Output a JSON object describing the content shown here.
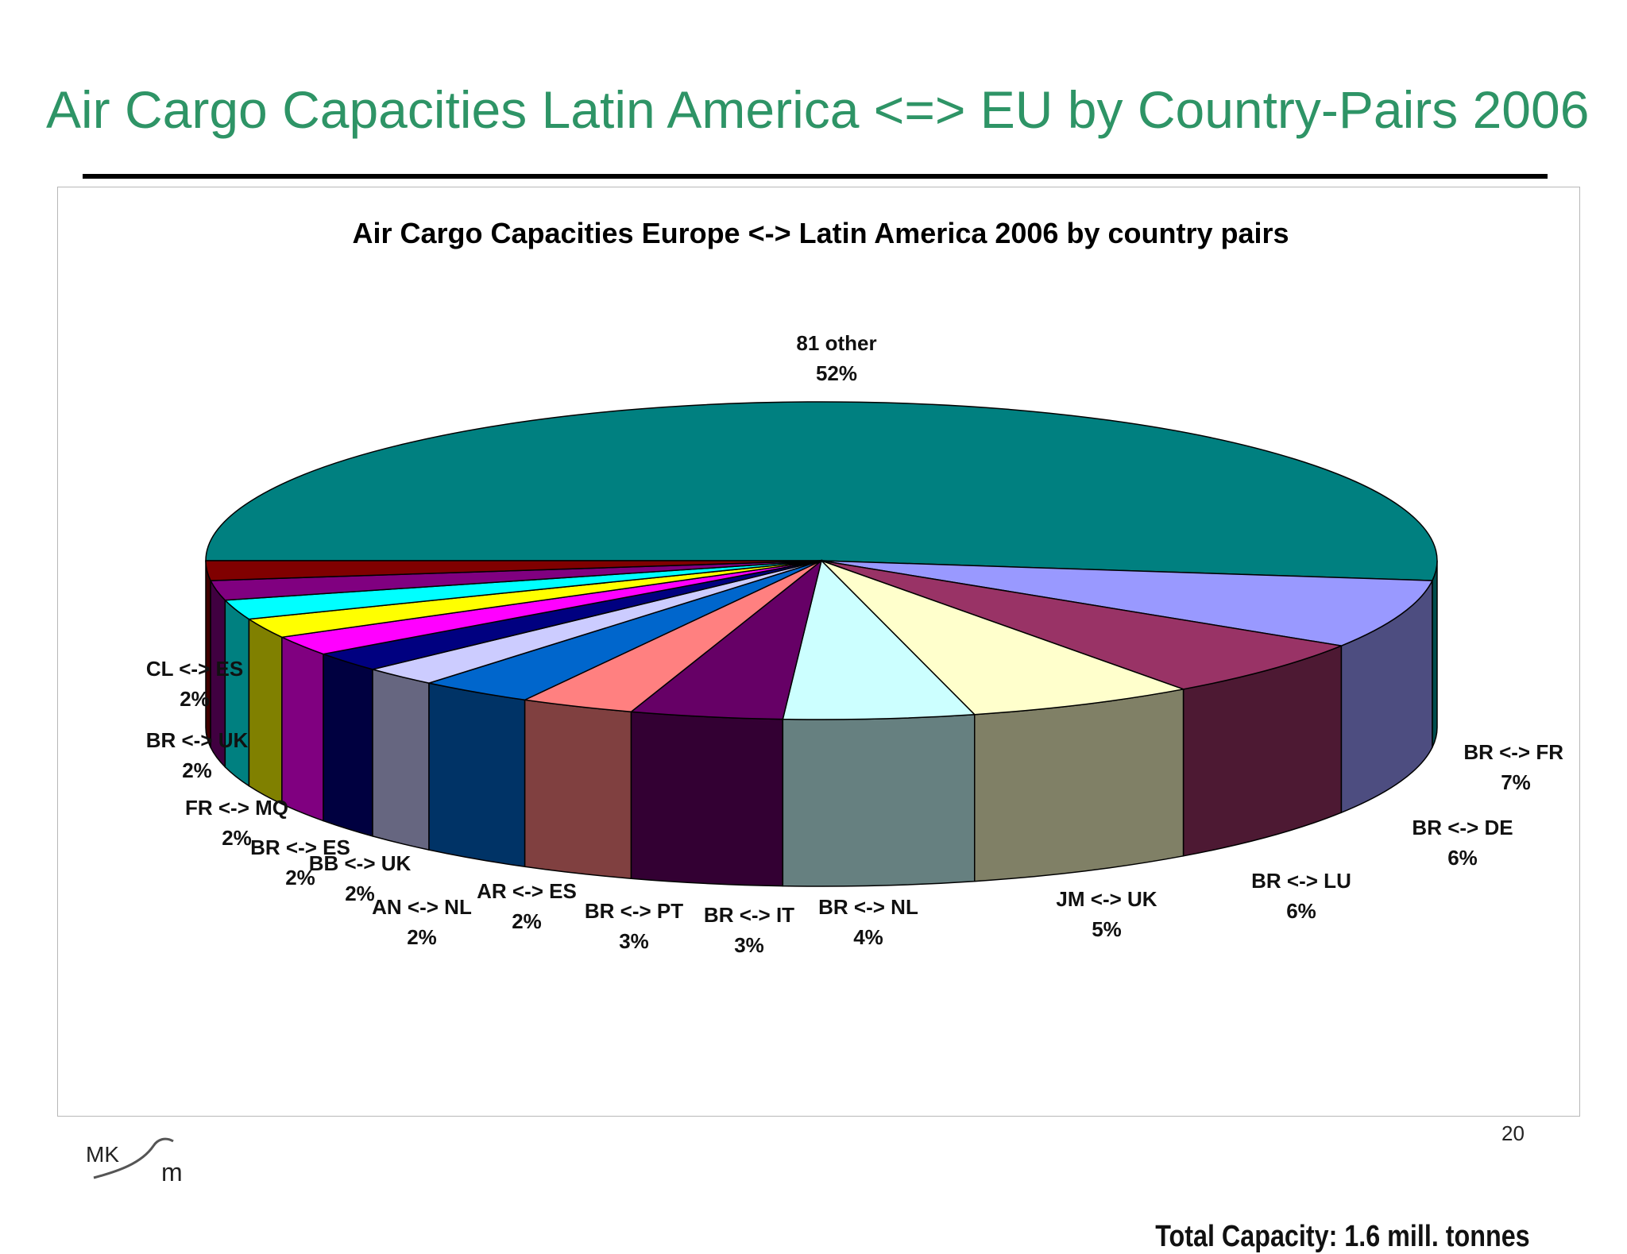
{
  "slide": {
    "title": "Air Cargo Capacities Latin America <=> EU by Country-Pairs 2006",
    "page_number": "20",
    "logo_text": "MKsm",
    "title_color": "#2e9466"
  },
  "chart_data": {
    "type": "pie",
    "title": "Air Cargo Capacities Europe <-> Latin America 2006 by country pairs",
    "annotation": "Total Capacity: 1.6 mill. tonnes",
    "slices": [
      {
        "label": "81 other",
        "value": 52,
        "pct": "52%",
        "top_color": "#008080",
        "side_color": "#004d4d"
      },
      {
        "label": "BR <-> FR",
        "value": 7,
        "pct": "7%",
        "top_color": "#9999ff",
        "side_color": "#4d4d80"
      },
      {
        "label": "BR <-> DE",
        "value": 6,
        "pct": "6%",
        "top_color": "#993366",
        "side_color": "#4d1933"
      },
      {
        "label": "BR <-> LU",
        "value": 6,
        "pct": "6%",
        "top_color": "#ffffcc",
        "side_color": "#808066"
      },
      {
        "label": "JM <-> UK",
        "value": 5,
        "pct": "5%",
        "top_color": "#ccffff",
        "side_color": "#668080"
      },
      {
        "label": "BR <-> NL",
        "value": 4,
        "pct": "4%",
        "top_color": "#660066",
        "side_color": "#330033"
      },
      {
        "label": "BR <-> IT",
        "value": 3,
        "pct": "3%",
        "top_color": "#ff8080",
        "side_color": "#804040"
      },
      {
        "label": "BR <-> PT",
        "value": 3,
        "pct": "3%",
        "top_color": "#0066cc",
        "side_color": "#003366"
      },
      {
        "label": "AR <-> ES",
        "value": 2,
        "pct": "2%",
        "top_color": "#ccccff",
        "side_color": "#666680"
      },
      {
        "label": "AN <-> NL",
        "value": 2,
        "pct": "2%",
        "top_color": "#000080",
        "side_color": "#000040"
      },
      {
        "label": "BB <-> UK",
        "value": 2,
        "pct": "2%",
        "top_color": "#ff00ff",
        "side_color": "#800080"
      },
      {
        "label": "BR <-> ES",
        "value": 2,
        "pct": "2%",
        "top_color": "#ffff00",
        "side_color": "#808000"
      },
      {
        "label": "FR <-> MQ",
        "value": 2,
        "pct": "2%",
        "top_color": "#00ffff",
        "side_color": "#008080"
      },
      {
        "label": "BR <-> UK",
        "value": 2,
        "pct": "2%",
        "top_color": "#800080",
        "side_color": "#400040"
      },
      {
        "label": "CL <-> ES",
        "value": 2,
        "pct": "2%",
        "top_color": "#800000",
        "side_color": "#400000"
      }
    ]
  }
}
